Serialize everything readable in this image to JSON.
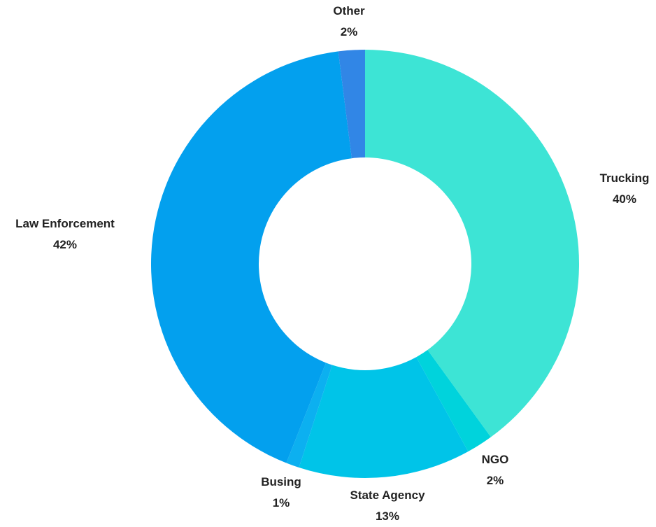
{
  "chart_data": {
    "type": "pie",
    "donut": true,
    "legend": "none",
    "slices": [
      {
        "label": "Trucking",
        "value": 40,
        "display": "40%",
        "color": "#3de4d5"
      },
      {
        "label": "NGO",
        "value": 2,
        "display": "2%",
        "color": "#00d3dc"
      },
      {
        "label": "State Agency",
        "value": 13,
        "display": "13%",
        "color": "#00c4e8"
      },
      {
        "label": "Busing",
        "value": 1,
        "display": "1%",
        "color": "#0cb0f0"
      },
      {
        "label": "Law Enforcement",
        "value": 42,
        "display": "42%",
        "color": "#03a0ee"
      },
      {
        "label": "Other",
        "value": 2,
        "display": "2%",
        "color": "#3186e6"
      }
    ]
  }
}
